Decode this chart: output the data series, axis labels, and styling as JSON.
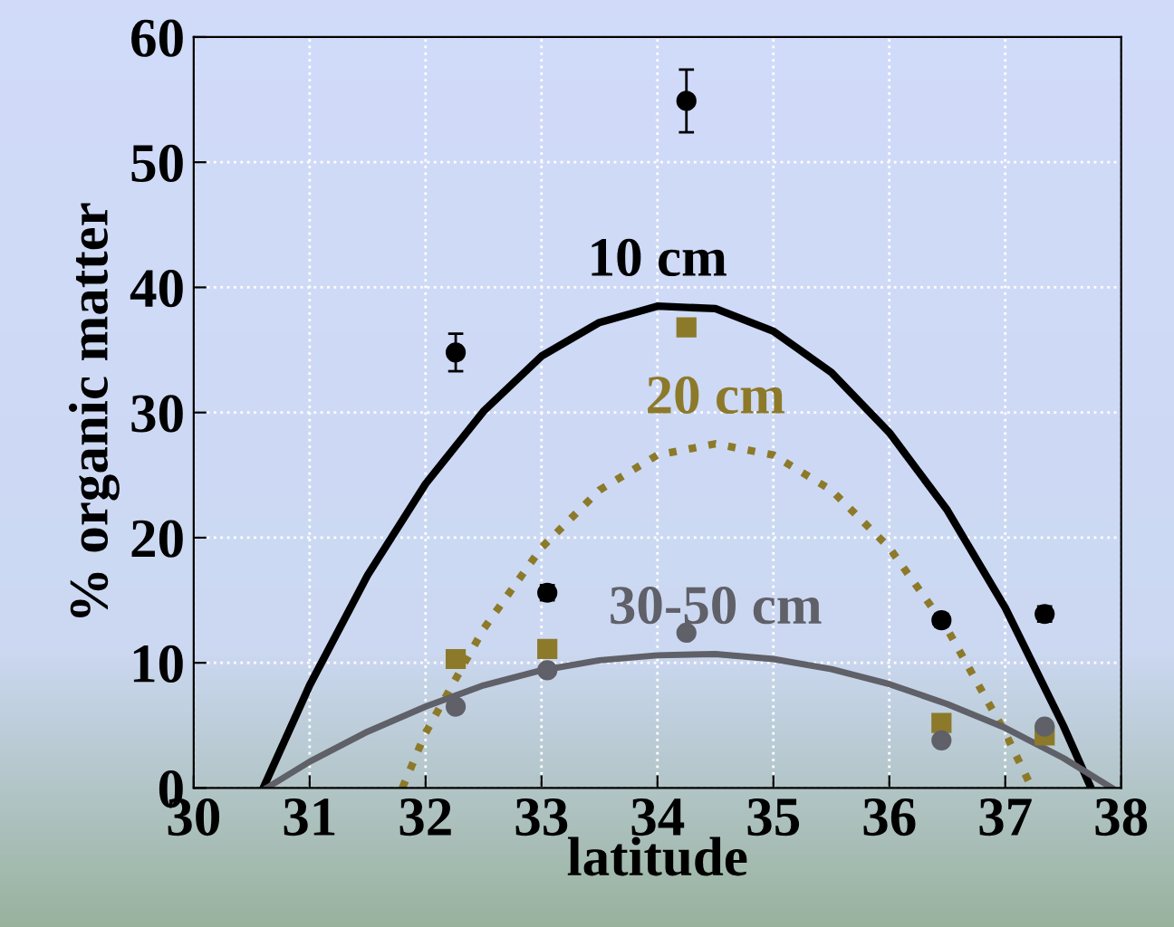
{
  "chart_data": {
    "type": "scatter",
    "xlabel": "latitude",
    "ylabel": "% organic matter",
    "xlim": [
      30,
      38
    ],
    "xticks": [
      30,
      31,
      32,
      33,
      34,
      35,
      36,
      37,
      38
    ],
    "ylim": [
      0,
      60
    ],
    "yticks": [
      0,
      10,
      20,
      30,
      40,
      50,
      60
    ],
    "grid": true,
    "series": [
      {
        "marker": "circle",
        "color": "#000000",
        "x": [
          32.26,
          33.05,
          34.25,
          36.45,
          37.34
        ],
        "values": [
          34.8,
          15.6,
          54.9,
          13.4,
          13.9
        ],
        "errors": [
          1.5,
          0.6,
          2.5,
          0.5,
          0.6
        ]
      },
      {
        "marker": "square",
        "color": "#8c7a2a",
        "x": [
          32.26,
          33.05,
          34.25,
          36.45,
          37.34
        ],
        "values": [
          10.3,
          11.1,
          36.8,
          5.2,
          4.2
        ]
      },
      {
        "marker": "circle",
        "color": "#5f6068",
        "x": [
          32.26,
          33.05,
          34.25,
          36.45,
          37.34
        ],
        "values": [
          6.5,
          9.4,
          12.4,
          3.8,
          4.9
        ]
      },
      {
        "type": "line",
        "name": "10 cm",
        "line_style": "solid",
        "color": "#000000",
        "x": [
          30.6,
          31,
          31.5,
          32,
          32.5,
          33,
          33.5,
          34,
          34.5,
          35,
          35.5,
          36,
          36.5,
          37,
          37.5,
          37.74
        ],
        "values": [
          0,
          8.2,
          17.0,
          24.3,
          30.1,
          34.5,
          37.2,
          38.5,
          38.3,
          36.5,
          33.2,
          28.4,
          22.2,
          14.4,
          5.0,
          0
        ]
      },
      {
        "type": "line",
        "name": "20 cm",
        "line_style": "dotted",
        "color": "#8c7a2a",
        "x": [
          31.8,
          32,
          32.5,
          33,
          33.5,
          34,
          34.5,
          35,
          35.5,
          36,
          36.5,
          37,
          37.23
        ],
        "values": [
          0,
          4.4,
          12.7,
          19.2,
          23.8,
          26.6,
          27.5,
          26.6,
          23.8,
          19.2,
          12.7,
          4.4,
          0
        ]
      },
      {
        "type": "line",
        "name": "30-50 cm",
        "line_style": "solid",
        "color": "#5f6068",
        "x": [
          30.63,
          31,
          31.5,
          32,
          32.5,
          33,
          33.5,
          34,
          34.5,
          35,
          35.5,
          36,
          36.5,
          37,
          37.5,
          37.92
        ],
        "values": [
          0,
          2.1,
          4.5,
          6.5,
          8.2,
          9.4,
          10.2,
          10.6,
          10.7,
          10.3,
          9.5,
          8.3,
          6.7,
          4.8,
          2.4,
          0
        ]
      }
    ]
  }
}
